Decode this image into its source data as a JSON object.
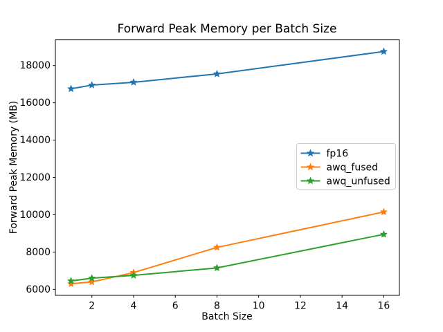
{
  "chart_data": {
    "type": "line",
    "title": "Forward Peak Memory per Batch Size",
    "xlabel": "Batch Size",
    "ylabel": "Forward Peak Memory (MB)",
    "x": [
      1,
      2,
      4,
      8,
      16
    ],
    "series": [
      {
        "name": "fp16",
        "color": "#1f77b4",
        "values": [
          16750,
          16950,
          17100,
          17550,
          18750
        ]
      },
      {
        "name": "awq_fused",
        "color": "#ff7f0e",
        "values": [
          6300,
          6400,
          6900,
          8250,
          10150
        ]
      },
      {
        "name": "awq_unfused",
        "color": "#2ca02c",
        "values": [
          6450,
          6600,
          6750,
          7150,
          8950
        ]
      }
    ],
    "x_ticks": [
      2,
      4,
      6,
      8,
      10,
      12,
      14,
      16
    ],
    "y_ticks": [
      6000,
      8000,
      10000,
      12000,
      14000,
      16000,
      18000
    ],
    "xlim": [
      0.25,
      16.75
    ],
    "ylim": [
      5680,
      19375
    ],
    "grid": false,
    "marker": "star",
    "legend_position": "center-right",
    "axis_color": "#000000",
    "legend_border_color": "#cccccc",
    "background": "#ffffff"
  }
}
